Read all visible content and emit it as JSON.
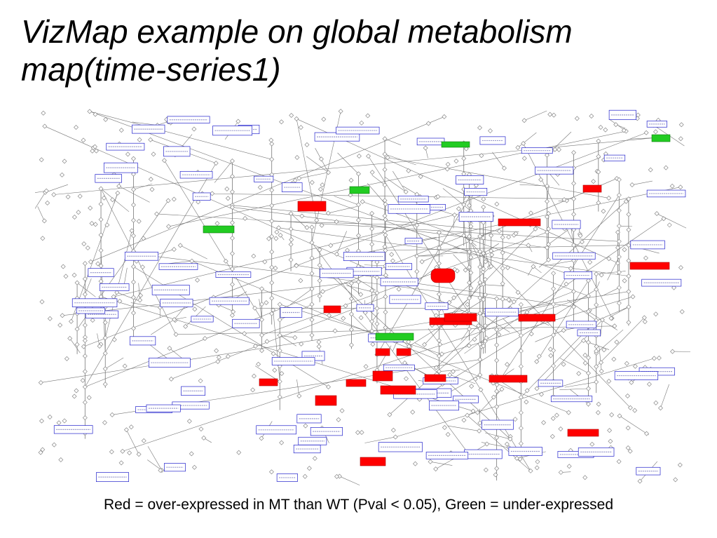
{
  "slide": {
    "title_line1": "VizMap example on global metabolism",
    "title_line2": "map(time-series1)",
    "caption": "Red = over-expressed in MT than WT (Pval < 0.05), Green = under-expressed"
  },
  "legend_colors": {
    "over_expressed": "#ff0000",
    "under_expressed": "#22cc22",
    "pathway_box_border": "#2222cc",
    "edge": "#777777",
    "compound_node": "#888888"
  }
}
